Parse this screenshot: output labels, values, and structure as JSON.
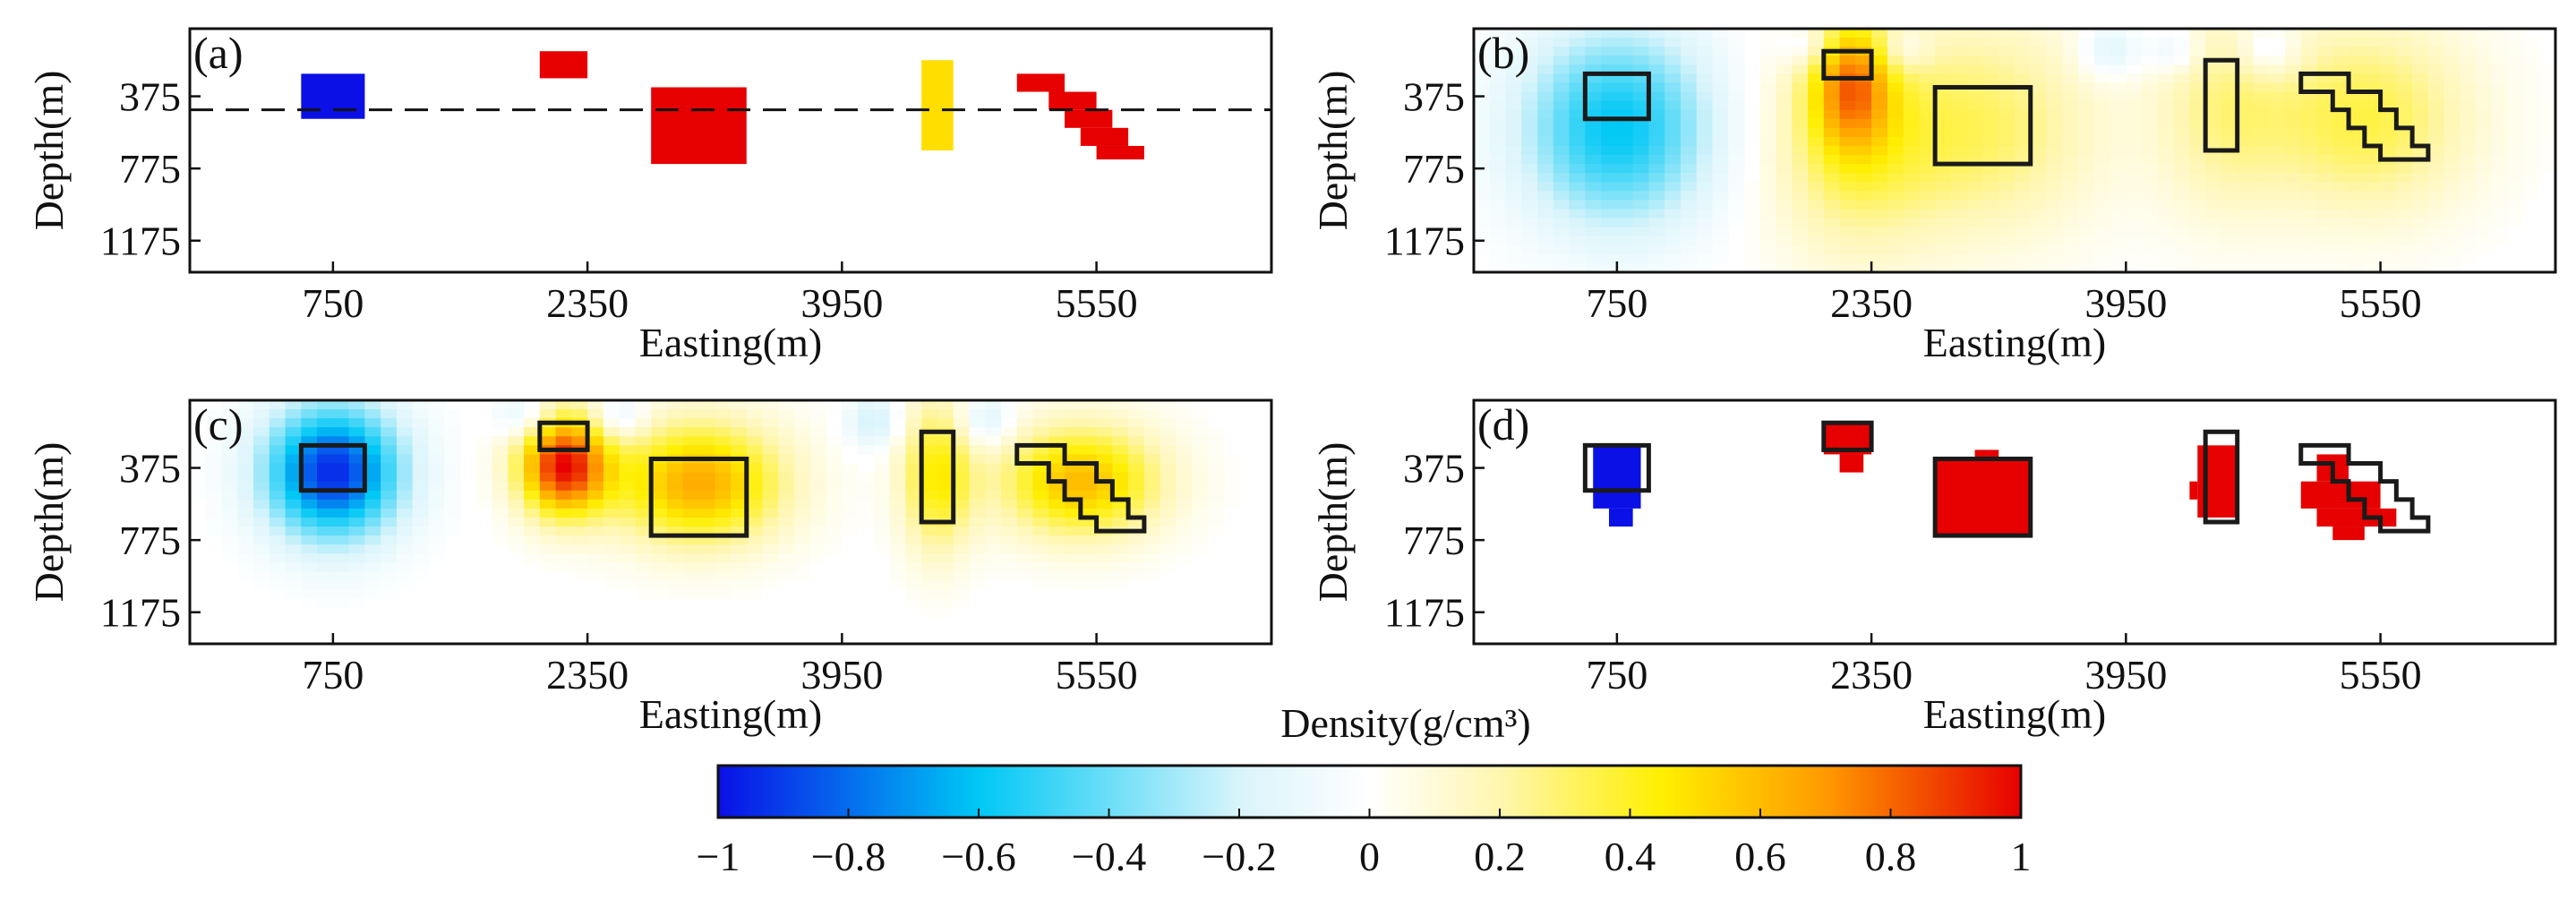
{
  "figure": {
    "colorbar_title": "Density(g/cm³)",
    "colorbar_ticks": [
      "−1",
      "−0.8",
      "−0.6",
      "−0.4",
      "−0.2",
      "0",
      "0.2",
      "0.4",
      "0.6",
      "0.8",
      "1"
    ],
    "colorbar_range": [
      -1,
      1
    ],
    "colorbar_stops": [
      {
        "v": -1.0,
        "color": "#0a10e6"
      },
      {
        "v": -0.6,
        "color": "#00c8f5"
      },
      {
        "v": -0.2,
        "color": "#d8f4fb"
      },
      {
        "v": 0.0,
        "color": "#ffffff"
      },
      {
        "v": 0.2,
        "color": "#fff6b0"
      },
      {
        "v": 0.45,
        "color": "#ffef00"
      },
      {
        "v": 0.7,
        "color": "#ff9a00"
      },
      {
        "v": 1.0,
        "color": "#e60000"
      }
    ]
  },
  "chart_data": [
    {
      "type": "heatmap",
      "panel": "(a)",
      "title": "(a)",
      "xlabel": "Easting(m)",
      "ylabel": "Depth(m)",
      "xticks": [
        "750",
        "2350",
        "3950",
        "5550"
      ],
      "yticks": [
        "375",
        "775",
        "1175"
      ],
      "xlim": [
        -150,
        6650
      ],
      "ylim": [
        0,
        1350
      ],
      "reference_depth": 450,
      "bodies": [
        {
          "name": "low-density block",
          "density": -1.0,
          "x": [
            550,
            950
          ],
          "z": [
            250,
            500
          ]
        },
        {
          "name": "shallow block",
          "density": 1.0,
          "x": [
            2050,
            2350
          ],
          "z": [
            125,
            275
          ]
        },
        {
          "name": "large block",
          "density": 1.0,
          "x": [
            2750,
            3350
          ],
          "z": [
            325,
            750
          ]
        },
        {
          "name": "dyke",
          "density": 0.5,
          "x": [
            4450,
            4650
          ],
          "z": [
            175,
            675
          ]
        },
        {
          "name": "dipping step 1",
          "density": 1.0,
          "x": [
            5050,
            5350
          ],
          "z": [
            250,
            350
          ]
        },
        {
          "name": "dipping step 2",
          "density": 1.0,
          "x": [
            5250,
            5550
          ],
          "z": [
            350,
            450
          ]
        },
        {
          "name": "dipping step 3",
          "density": 1.0,
          "x": [
            5350,
            5650
          ],
          "z": [
            450,
            550
          ]
        },
        {
          "name": "dipping step 4",
          "density": 1.0,
          "x": [
            5450,
            5750
          ],
          "z": [
            550,
            650
          ]
        },
        {
          "name": "dipping step 5",
          "density": 1.0,
          "x": [
            5550,
            5850
          ],
          "z": [
            650,
            725
          ]
        }
      ]
    },
    {
      "type": "heatmap",
      "panel": "(b)",
      "title": "(b)",
      "xlabel": "Easting(m)",
      "ylabel": "Depth(m)",
      "xticks": [
        "750",
        "2350",
        "3950",
        "5550"
      ],
      "yticks": [
        "375",
        "775",
        "1175"
      ],
      "xlim": [
        -150,
        6650
      ],
      "ylim": [
        0,
        1350
      ],
      "anomalies": [
        {
          "x": 750,
          "z": 550,
          "amp": -0.6,
          "sx": 420,
          "sz": 380
        },
        {
          "x": 2220,
          "z": 300,
          "amp": 0.55,
          "sx": 180,
          "sz": 260
        },
        {
          "x": 2220,
          "z": 650,
          "amp": 0.28,
          "sx": 380,
          "sz": 450
        },
        {
          "x": 3050,
          "z": 550,
          "amp": 0.3,
          "sx": 520,
          "sz": 430
        },
        {
          "x": 4550,
          "z": 450,
          "amp": 0.22,
          "sx": 300,
          "sz": 420
        },
        {
          "x": 5450,
          "z": 500,
          "amp": 0.35,
          "sx": 480,
          "sz": 380
        },
        {
          "x": 1950,
          "z": 100,
          "amp": -0.18,
          "sx": 120,
          "sz": 90
        },
        {
          "x": 2550,
          "z": 120,
          "amp": -0.18,
          "sx": 120,
          "sz": 90
        },
        {
          "x": 3850,
          "z": 120,
          "amp": -0.2,
          "sx": 140,
          "sz": 110
        },
        {
          "x": 4250,
          "z": 120,
          "amp": -0.18,
          "sx": 120,
          "sz": 90
        },
        {
          "x": 4850,
          "z": 120,
          "amp": -0.2,
          "sx": 140,
          "sz": 110
        }
      ]
    },
    {
      "type": "heatmap",
      "panel": "(c)",
      "title": "(c)",
      "xlabel": "Easting(m)",
      "ylabel": "Depth(m)",
      "xticks": [
        "750",
        "2350",
        "3950",
        "5550"
      ],
      "yticks": [
        "375",
        "775",
        "1175"
      ],
      "xlim": [
        -150,
        6650
      ],
      "ylim": [
        0,
        1350
      ],
      "anomalies": [
        {
          "x": 750,
          "z": 400,
          "amp": -0.95,
          "sx": 300,
          "sz": 260
        },
        {
          "x": 2200,
          "z": 360,
          "amp": 0.95,
          "sx": 200,
          "sz": 200
        },
        {
          "x": 3050,
          "z": 460,
          "amp": 0.65,
          "sx": 380,
          "sz": 240
        },
        {
          "x": 4550,
          "z": 420,
          "amp": 0.45,
          "sx": 160,
          "sz": 300
        },
        {
          "x": 5450,
          "z": 450,
          "amp": 0.6,
          "sx": 360,
          "sz": 220
        },
        {
          "x": 1950,
          "z": 100,
          "amp": -0.22,
          "sx": 120,
          "sz": 90
        },
        {
          "x": 2550,
          "z": 100,
          "amp": -0.22,
          "sx": 120,
          "sz": 90
        },
        {
          "x": 4150,
          "z": 120,
          "amp": -0.22,
          "sx": 120,
          "sz": 100
        },
        {
          "x": 4850,
          "z": 120,
          "amp": -0.22,
          "sx": 120,
          "sz": 100
        }
      ]
    },
    {
      "type": "heatmap",
      "panel": "(d)",
      "title": "(d)",
      "xlabel": "Easting(m)",
      "ylabel": "Depth(m)",
      "xticks": [
        "750",
        "2350",
        "3950",
        "5550"
      ],
      "yticks": [
        "375",
        "775",
        "1175"
      ],
      "xlim": [
        -150,
        6650
      ],
      "ylim": [
        0,
        1350
      ],
      "cells": [
        {
          "density": -1.0,
          "x": [
            600,
            900
          ],
          "z": [
            250,
            600
          ]
        },
        {
          "density": -1.0,
          "x": [
            700,
            850
          ],
          "z": [
            600,
            700
          ]
        },
        {
          "density": 1.0,
          "x": [
            2050,
            2350
          ],
          "z": [
            125,
            300
          ]
        },
        {
          "density": 1.0,
          "x": [
            2150,
            2300
          ],
          "z": [
            300,
            400
          ]
        },
        {
          "density": 1.0,
          "x": [
            2750,
            3350
          ],
          "z": [
            325,
            750
          ]
        },
        {
          "density": 1.0,
          "x": [
            3000,
            3150
          ],
          "z": [
            275,
            325
          ]
        },
        {
          "density": 1.0,
          "x": [
            4400,
            4650
          ],
          "z": [
            250,
            650
          ]
        },
        {
          "density": 1.0,
          "x": [
            4350,
            4400
          ],
          "z": [
            450,
            550
          ]
        },
        {
          "density": 1.0,
          "x": [
            5150,
            5350
          ],
          "z": [
            300,
            450
          ]
        },
        {
          "density": 1.0,
          "x": [
            5050,
            5550
          ],
          "z": [
            450,
            600
          ]
        },
        {
          "density": 1.0,
          "x": [
            5150,
            5650
          ],
          "z": [
            600,
            700
          ]
        },
        {
          "density": 1.0,
          "x": [
            5250,
            5450
          ],
          "z": [
            700,
            775
          ]
        }
      ]
    }
  ]
}
